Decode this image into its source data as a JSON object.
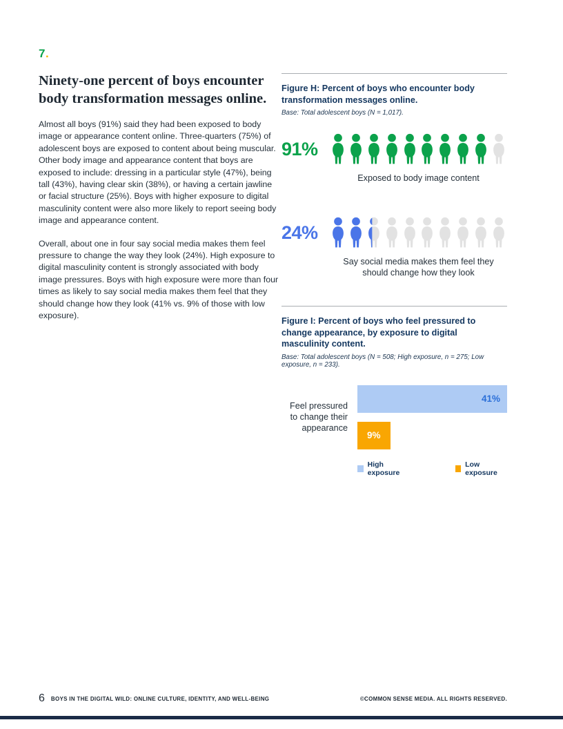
{
  "section": {
    "number": "7",
    "dot": ".",
    "number_color": "#0ba24b",
    "dot_color": "#f5b800"
  },
  "title": "Ninety-one percent of boys encounter body transformation messages online.",
  "paragraphs": [
    "Almost all boys (91%) said they had been exposed to body image or appearance content online. Three-quarters (75%) of adolescent boys are exposed to content about being muscular. Other body image and appearance content that boys are exposed to include: dressing in a particular style (47%), being tall (43%), having clear skin (38%), or having a certain jawline or facial structure (25%). Boys with higher exposure to digital masculinity content were also more likely to report seeing body image and appearance content.",
    "Overall, about one in four say social media makes them feel pressure to change the way they look (24%). High exposure to digital masculinity content is strongly associated with body image pressures. Boys with high exposure were more than four times as likely to say social media makes them feel that they should change how they look (41% vs. 9% of those with low exposure)."
  ],
  "figure_h": {
    "title": "Figure H: Percent of boys who encounter body transformation messages online.",
    "base_note": "Base: Total adolescent boys (N = 1,017).",
    "icons_per_row": 10,
    "inactive_color": "#e2e2e2",
    "rows": [
      {
        "value_label": "91%",
        "percent": 91,
        "color": "#0ba24b",
        "caption": "Exposed to body image content"
      },
      {
        "value_label": "24%",
        "percent": 24,
        "color": "#4a75e8",
        "caption": "Say social media makes them feel they should change how they look"
      }
    ]
  },
  "figure_i": {
    "title": "Figure I: Percent of boys who feel pressured to change appearance, by exposure to digital masculinity content.",
    "base_note": "Base: Total adolescent boys (N = 508; High exposure, n = 275; Low exposure, n = 233).",
    "category_label": "Feel pressured to change their appearance",
    "max_value": 41,
    "bars": [
      {
        "name": "High exposure",
        "label": "41%",
        "value": 41,
        "color": "#aecbf4",
        "label_color": "#2b6fd8",
        "label_align": "right"
      },
      {
        "name": "Low exposure",
        "label": "9%",
        "value": 9,
        "color": "#f9a602",
        "label_color": "#ffffff",
        "label_align": "center"
      }
    ],
    "legend": [
      {
        "label": "High exposure",
        "color": "#aecbf4"
      },
      {
        "label": "Low exposure",
        "color": "#f9a602"
      }
    ]
  },
  "chart_data": [
    {
      "type": "bar",
      "subtype": "pictograph",
      "title": "Figure H: Percent of boys who encounter body transformation messages online.",
      "base": "Total adolescent boys (N = 1,017)",
      "categories": [
        "Exposed to body image content",
        "Say social media makes them feel they should change how they look"
      ],
      "values": [
        91,
        24
      ],
      "units": "percent of boys",
      "icons_per_row": 10
    },
    {
      "type": "bar",
      "orientation": "horizontal",
      "title": "Figure I: Percent of boys who feel pressured to change appearance, by exposure to digital masculinity content.",
      "base": "Total adolescent boys (N = 508; High exposure, n = 275; Low exposure, n = 233)",
      "categories": [
        "Feel pressured to change their appearance"
      ],
      "series": [
        {
          "name": "High exposure",
          "values": [
            41
          ]
        },
        {
          "name": "Low exposure",
          "values": [
            9
          ]
        }
      ],
      "xlim": [
        0,
        41
      ],
      "legend_position": "bottom"
    }
  ],
  "footer": {
    "page_number": "6",
    "report_title": "BOYS IN THE DIGITAL WILD: ONLINE CULTURE, IDENTITY, AND WELL-BEING",
    "copyright": "©COMMON SENSE MEDIA. ALL RIGHTS RESERVED."
  }
}
